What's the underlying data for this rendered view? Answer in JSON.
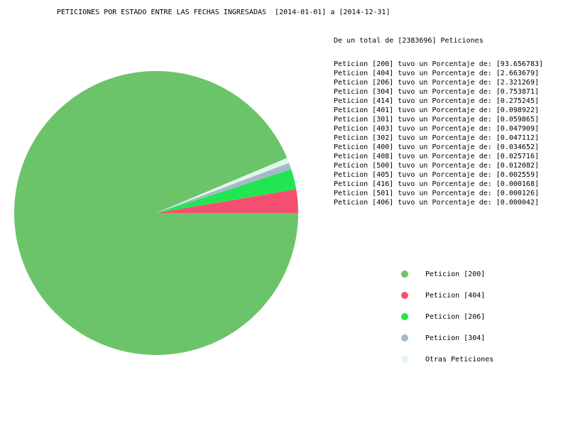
{
  "chart_data": {
    "type": "pie",
    "title": "PETICIONES POR ESTADO ENTRE LAS FECHAS INGRESADAS  [2014-01-01] a [2014-12-31]",
    "total_line": "De un total de [2383696] Peticiones",
    "stats": [
      "Peticion [200] tuvo un Porcentaje de: [93.656783]",
      "Peticion [404] tuvo un Porcentaje de: [2.663679]",
      "Peticion [206] tuvo un Porcentaje de: [2.321269]",
      "Peticion [304] tuvo un Porcentaje de: [0.753871]",
      "Peticion [414] tuvo un Porcentaje de: [0.275245]",
      "Peticion [401] tuvo un Porcentaje de: [0.098922]",
      "Peticion [301] tuvo un Porcentaje de: [0.059865]",
      "Peticion [403] tuvo un Porcentaje de: [0.047909]",
      "Peticion [302] tuvo un Porcentaje de: [0.047112]",
      "Peticion [400] tuvo un Porcentaje de: [0.034652]",
      "Peticion [408] tuvo un Porcentaje de: [0.025716]",
      "Peticion [500] tuvo un Porcentaje de: [0.012082]",
      "Peticion [405] tuvo un Porcentaje de: [0.002559]",
      "Peticion [416] tuvo un Porcentaje de: [0.000168]",
      "Peticion [501] tuvo un Porcentaje de: [0.000126]",
      "Peticion [406] tuvo un Porcentaje de: [0.000042]"
    ],
    "slices": [
      {
        "label": "Peticion [200]",
        "value": 93.656783,
        "color": "#6cc46a"
      },
      {
        "label": "Peticion [404]",
        "value": 2.663679,
        "color": "#f54f70"
      },
      {
        "label": "Peticion [206]",
        "value": 2.321269,
        "color": "#22e651"
      },
      {
        "label": "Peticion [304]",
        "value": 0.753871,
        "color": "#a8b8c7"
      },
      {
        "label": "Otras Peticiones",
        "value": 0.604398,
        "color": "#e0f7ee"
      }
    ],
    "legend_placement": "bottom-right"
  }
}
